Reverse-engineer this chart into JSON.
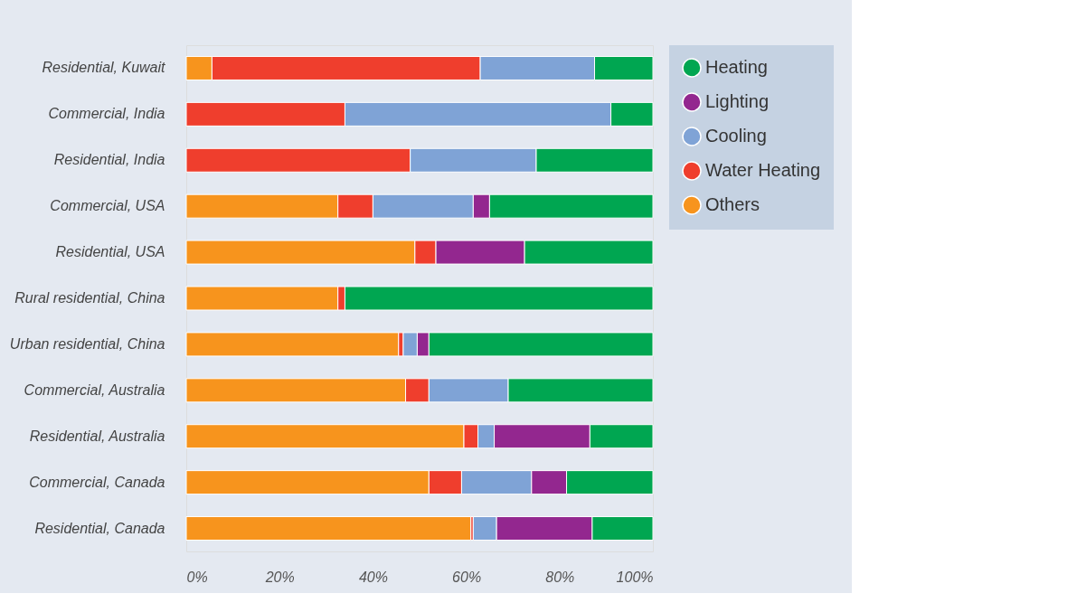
{
  "chart_data": {
    "type": "bar",
    "orientation": "horizontal",
    "stacked": true,
    "categories": [
      "Residential, Kuwait",
      "Commercial, India",
      "Residential, India",
      "Commercial, USA",
      "Residential, USA",
      "Rural residential, China",
      "Urban residential, China",
      "Commercial, Australia",
      "Residential, Australia",
      "Commercial, Canada",
      "Residential, Canada"
    ],
    "series": [
      {
        "name": "Others",
        "color": "#f7941d",
        "values": [
          5.5,
          0,
          0,
          32.5,
          49,
          32.5,
          45.5,
          47,
          59.5,
          52,
          61
        ]
      },
      {
        "name": "Water Heating",
        "color": "#ef3e2d",
        "values": [
          57.5,
          34,
          48,
          7.5,
          4.5,
          1.5,
          1,
          5,
          3,
          7,
          0.5
        ]
      },
      {
        "name": "Cooling",
        "color": "#7fa3d6",
        "values": [
          24.5,
          57,
          27,
          21.5,
          0,
          0,
          3,
          17,
          3.5,
          15,
          5
        ]
      },
      {
        "name": "Lighting",
        "color": "#93278f",
        "values": [
          0,
          0,
          0,
          3.5,
          19,
          0,
          2.5,
          0,
          20.5,
          7.5,
          20.5
        ]
      },
      {
        "name": "Heating",
        "color": "#00a651",
        "values": [
          12.5,
          9,
          25,
          35,
          27.5,
          66,
          48,
          31,
          13.5,
          18.5,
          13
        ]
      }
    ],
    "xlim": [
      0,
      100
    ],
    "xticks": [
      {
        "value": 0,
        "label": "0%"
      },
      {
        "value": 20,
        "label": "20%"
      },
      {
        "value": 40,
        "label": "40%"
      },
      {
        "value": 60,
        "label": "60%"
      },
      {
        "value": 80,
        "label": "80%"
      },
      {
        "value": 100,
        "label": "100%"
      }
    ],
    "grid": false,
    "legend": "top right"
  }
}
